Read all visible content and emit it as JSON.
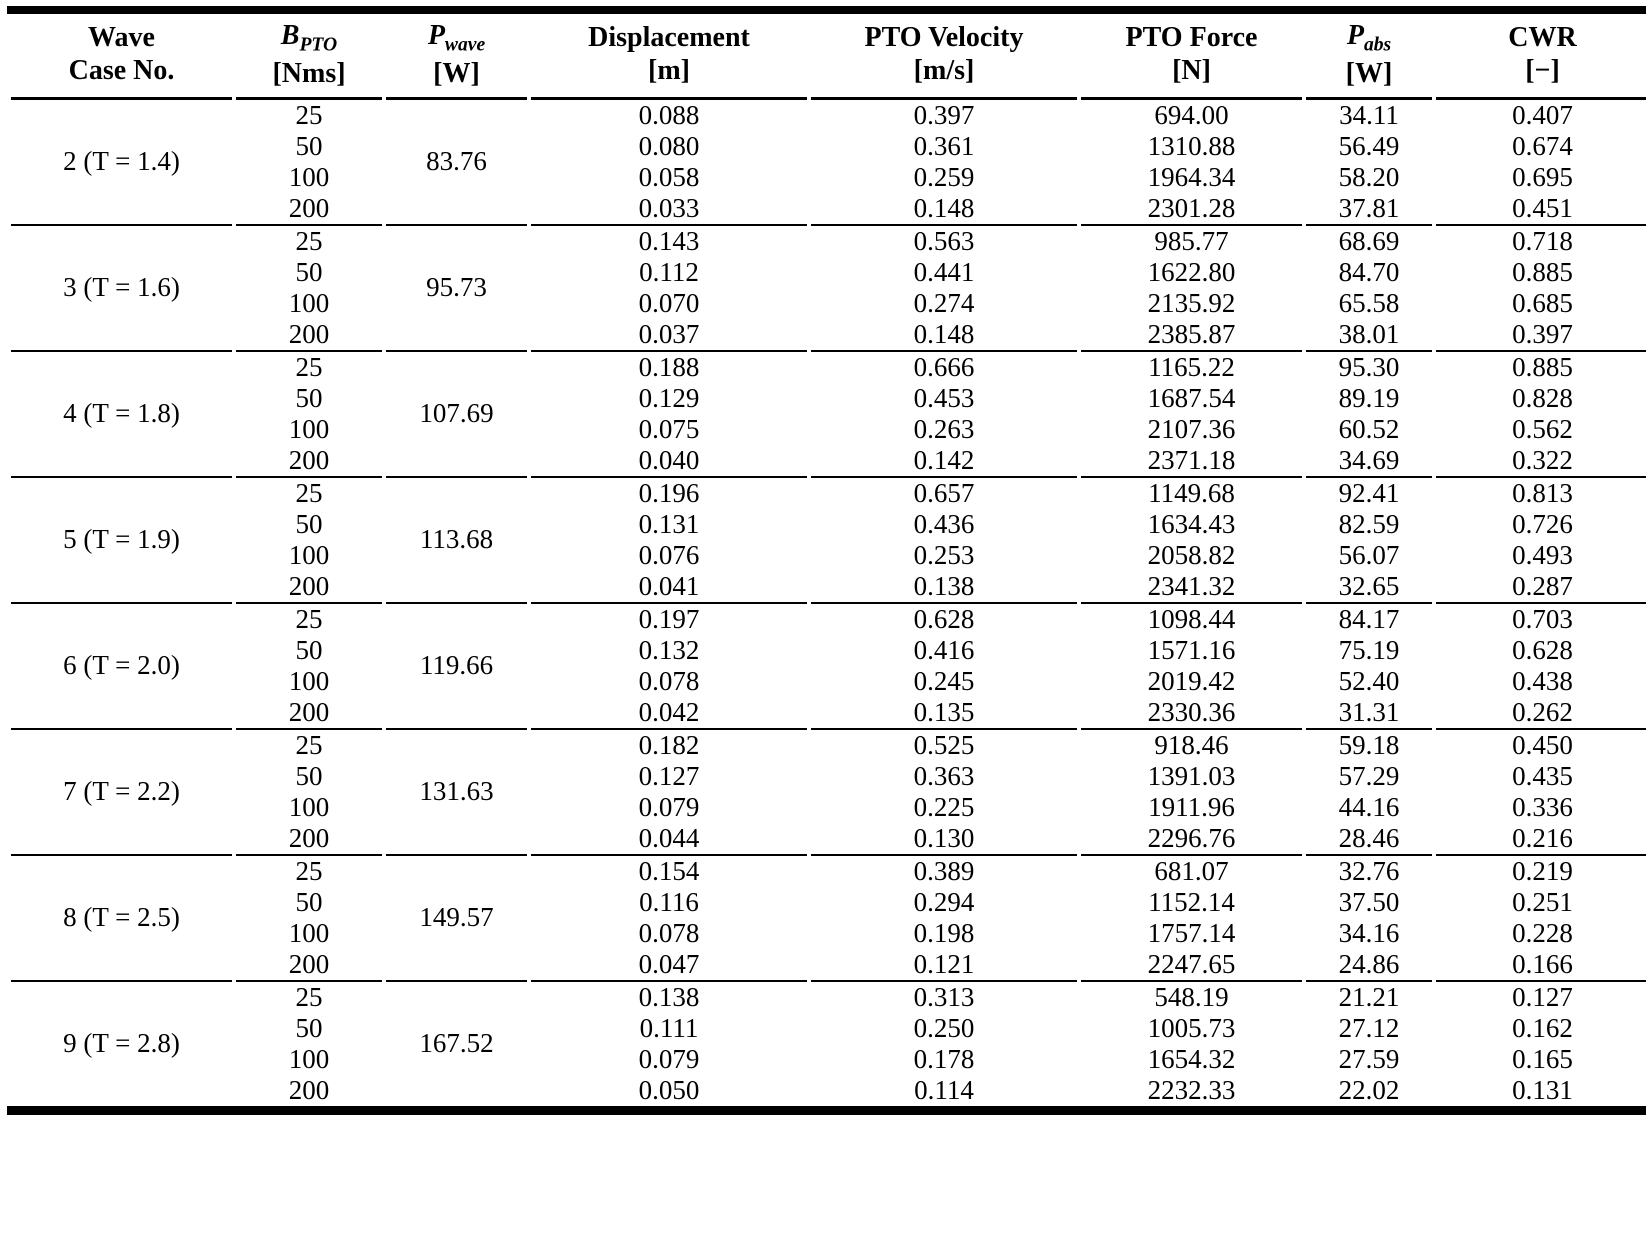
{
  "table": {
    "columns": [
      {
        "line1": "Wave",
        "line2": "Case No."
      },
      {
        "symbol": "B",
        "subscript": "PTO",
        "unit": "[Nms]"
      },
      {
        "symbol": "P",
        "subscript": "wave",
        "unit": "[W]"
      },
      {
        "line1": "Displacement",
        "unit": "[m]"
      },
      {
        "line1": "PTO Velocity",
        "unit": "[m/s]"
      },
      {
        "line1": "PTO Force",
        "unit": "[N]"
      },
      {
        "symbol": "P",
        "subscript": "abs",
        "unit": "[W]"
      },
      {
        "line1": "CWR",
        "unit": "[−]"
      }
    ],
    "groups": [
      {
        "case": "2 (T = 1.4)",
        "p_wave": "83.76",
        "rows": [
          {
            "b_pto": "25",
            "displacement": "0.088",
            "velocity": "0.397",
            "force": "694.00",
            "p_abs": "34.11",
            "cwr": "0.407"
          },
          {
            "b_pto": "50",
            "displacement": "0.080",
            "velocity": "0.361",
            "force": "1310.88",
            "p_abs": "56.49",
            "cwr": "0.674"
          },
          {
            "b_pto": "100",
            "displacement": "0.058",
            "velocity": "0.259",
            "force": "1964.34",
            "p_abs": "58.20",
            "cwr": "0.695"
          },
          {
            "b_pto": "200",
            "displacement": "0.033",
            "velocity": "0.148",
            "force": "2301.28",
            "p_abs": "37.81",
            "cwr": "0.451"
          }
        ]
      },
      {
        "case": "3 (T = 1.6)",
        "p_wave": "95.73",
        "rows": [
          {
            "b_pto": "25",
            "displacement": "0.143",
            "velocity": "0.563",
            "force": "985.77",
            "p_abs": "68.69",
            "cwr": "0.718"
          },
          {
            "b_pto": "50",
            "displacement": "0.112",
            "velocity": "0.441",
            "force": "1622.80",
            "p_abs": "84.70",
            "cwr": "0.885"
          },
          {
            "b_pto": "100",
            "displacement": "0.070",
            "velocity": "0.274",
            "force": "2135.92",
            "p_abs": "65.58",
            "cwr": "0.685"
          },
          {
            "b_pto": "200",
            "displacement": "0.037",
            "velocity": "0.148",
            "force": "2385.87",
            "p_abs": "38.01",
            "cwr": "0.397"
          }
        ]
      },
      {
        "case": "4 (T = 1.8)",
        "p_wave": "107.69",
        "rows": [
          {
            "b_pto": "25",
            "displacement": "0.188",
            "velocity": "0.666",
            "force": "1165.22",
            "p_abs": "95.30",
            "cwr": "0.885"
          },
          {
            "b_pto": "50",
            "displacement": "0.129",
            "velocity": "0.453",
            "force": "1687.54",
            "p_abs": "89.19",
            "cwr": "0.828"
          },
          {
            "b_pto": "100",
            "displacement": "0.075",
            "velocity": "0.263",
            "force": "2107.36",
            "p_abs": "60.52",
            "cwr": "0.562"
          },
          {
            "b_pto": "200",
            "displacement": "0.040",
            "velocity": "0.142",
            "force": "2371.18",
            "p_abs": "34.69",
            "cwr": "0.322"
          }
        ]
      },
      {
        "case": "5 (T = 1.9)",
        "p_wave": "113.68",
        "rows": [
          {
            "b_pto": "25",
            "displacement": "0.196",
            "velocity": "0.657",
            "force": "1149.68",
            "p_abs": "92.41",
            "cwr": "0.813"
          },
          {
            "b_pto": "50",
            "displacement": "0.131",
            "velocity": "0.436",
            "force": "1634.43",
            "p_abs": "82.59",
            "cwr": "0.726"
          },
          {
            "b_pto": "100",
            "displacement": "0.076",
            "velocity": "0.253",
            "force": "2058.82",
            "p_abs": "56.07",
            "cwr": "0.493"
          },
          {
            "b_pto": "200",
            "displacement": "0.041",
            "velocity": "0.138",
            "force": "2341.32",
            "p_abs": "32.65",
            "cwr": "0.287"
          }
        ]
      },
      {
        "case": "6 (T = 2.0)",
        "p_wave": "119.66",
        "rows": [
          {
            "b_pto": "25",
            "displacement": "0.197",
            "velocity": "0.628",
            "force": "1098.44",
            "p_abs": "84.17",
            "cwr": "0.703"
          },
          {
            "b_pto": "50",
            "displacement": "0.132",
            "velocity": "0.416",
            "force": "1571.16",
            "p_abs": "75.19",
            "cwr": "0.628"
          },
          {
            "b_pto": "100",
            "displacement": "0.078",
            "velocity": "0.245",
            "force": "2019.42",
            "p_abs": "52.40",
            "cwr": "0.438"
          },
          {
            "b_pto": "200",
            "displacement": "0.042",
            "velocity": "0.135",
            "force": "2330.36",
            "p_abs": "31.31",
            "cwr": "0.262"
          }
        ]
      },
      {
        "case": "7 (T = 2.2)",
        "p_wave": "131.63",
        "rows": [
          {
            "b_pto": "25",
            "displacement": "0.182",
            "velocity": "0.525",
            "force": "918.46",
            "p_abs": "59.18",
            "cwr": "0.450"
          },
          {
            "b_pto": "50",
            "displacement": "0.127",
            "velocity": "0.363",
            "force": "1391.03",
            "p_abs": "57.29",
            "cwr": "0.435"
          },
          {
            "b_pto": "100",
            "displacement": "0.079",
            "velocity": "0.225",
            "force": "1911.96",
            "p_abs": "44.16",
            "cwr": "0.336"
          },
          {
            "b_pto": "200",
            "displacement": "0.044",
            "velocity": "0.130",
            "force": "2296.76",
            "p_abs": "28.46",
            "cwr": "0.216"
          }
        ]
      },
      {
        "case": "8 (T = 2.5)",
        "p_wave": "149.57",
        "rows": [
          {
            "b_pto": "25",
            "displacement": "0.154",
            "velocity": "0.389",
            "force": "681.07",
            "p_abs": "32.76",
            "cwr": "0.219"
          },
          {
            "b_pto": "50",
            "displacement": "0.116",
            "velocity": "0.294",
            "force": "1152.14",
            "p_abs": "37.50",
            "cwr": "0.251"
          },
          {
            "b_pto": "100",
            "displacement": "0.078",
            "velocity": "0.198",
            "force": "1757.14",
            "p_abs": "34.16",
            "cwr": "0.228"
          },
          {
            "b_pto": "200",
            "displacement": "0.047",
            "velocity": "0.121",
            "force": "2247.65",
            "p_abs": "24.86",
            "cwr": "0.166"
          }
        ]
      },
      {
        "case": "9 (T = 2.8)",
        "p_wave": "167.52",
        "rows": [
          {
            "b_pto": "25",
            "displacement": "0.138",
            "velocity": "0.313",
            "force": "548.19",
            "p_abs": "21.21",
            "cwr": "0.127"
          },
          {
            "b_pto": "50",
            "displacement": "0.111",
            "velocity": "0.250",
            "force": "1005.73",
            "p_abs": "27.12",
            "cwr": "0.162"
          },
          {
            "b_pto": "100",
            "displacement": "0.079",
            "velocity": "0.178",
            "force": "1654.32",
            "p_abs": "27.59",
            "cwr": "0.165"
          },
          {
            "b_pto": "200",
            "displacement": "0.050",
            "velocity": "0.114",
            "force": "2232.33",
            "p_abs": "22.02",
            "cwr": "0.131"
          }
        ]
      }
    ]
  }
}
